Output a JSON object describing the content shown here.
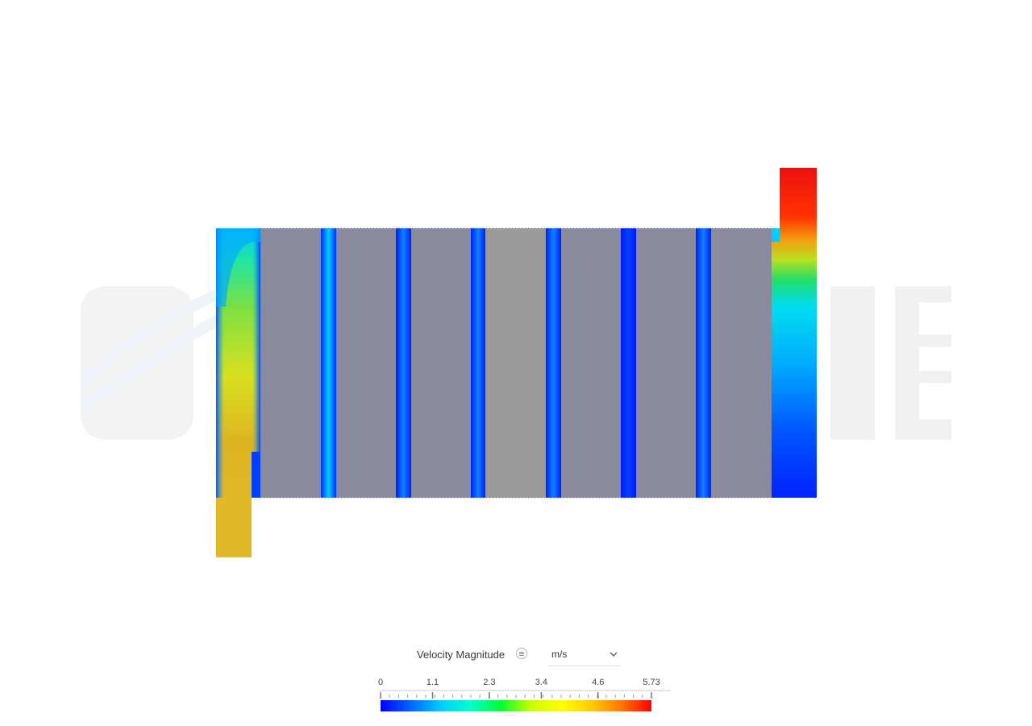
{
  "viewer": {
    "watermark_icon": "simscale-logo-watermark"
  },
  "legend": {
    "title": "Velocity Magnitude",
    "info_icon": "list-info-icon",
    "unit": "m/s",
    "unit_dropdown_icon": "chevron-down-icon",
    "range_min": 0,
    "range_max": 5.73,
    "tick_labels": [
      "0",
      "1.1",
      "2.3",
      "3.4",
      "4.6",
      "5.73"
    ],
    "tick_values": [
      0,
      1.1,
      2.3,
      3.4,
      4.6,
      5.73
    ],
    "colormap": [
      "#0000ff",
      "#0066ff",
      "#00ccff",
      "#00ffcc",
      "#00ff33",
      "#ccff00",
      "#ffff00",
      "#ffcc00",
      "#ff7700",
      "#ff0000"
    ]
  },
  "colors": {
    "solid_fins": "#8a8a9e",
    "center_solid": "#9a9a9a",
    "watermark": "#f2f2f2"
  }
}
